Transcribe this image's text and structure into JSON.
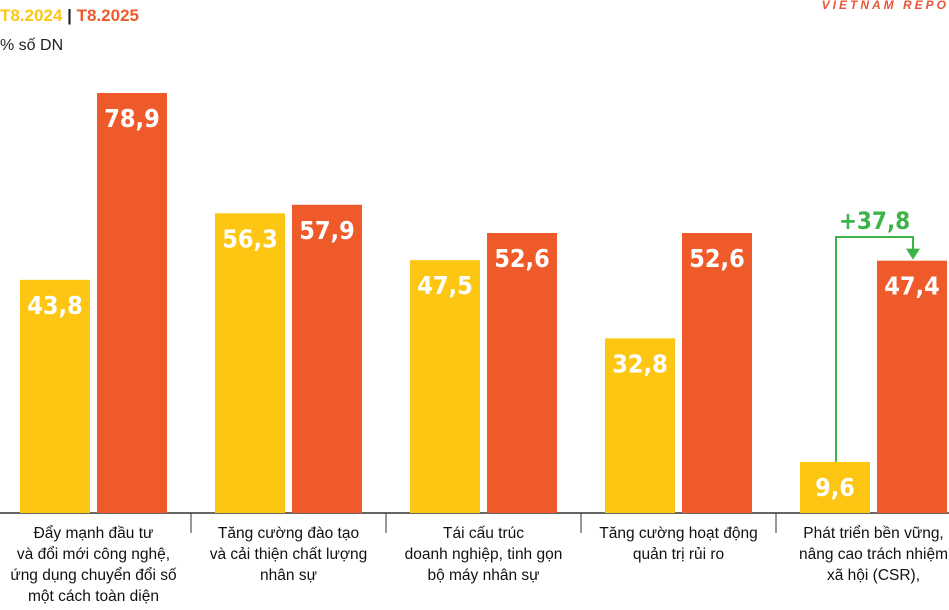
{
  "header": {
    "legend_2024": "T8.2024",
    "legend_separator": "|",
    "legend_2025": "T8.2025",
    "unit": "% số DN",
    "source": "VIETNAM REPO"
  },
  "colors": {
    "series_2024": "#fcc613",
    "series_2025": "#ef5a2a",
    "callout": "#3db44a",
    "axis": "#333333"
  },
  "chart_data": {
    "type": "bar",
    "categories": [
      [
        "Đẩy mạnh đầu tư",
        "và đổi mới công nghệ,",
        "ứng dụng chuyển đổi số",
        "một cách toàn diện"
      ],
      [
        "Tăng cường đào tạo",
        "và cải thiện chất lượng",
        "nhân sự"
      ],
      [
        "Tái cấu trúc",
        "doanh nghiệp, tinh gọn",
        "bộ máy nhân sự"
      ],
      [
        "Tăng cường hoạt động",
        "quản trị rủi ro"
      ],
      [
        "Phát triển bền vững,",
        "nâng cao trách nhiệm",
        "xã hội (CSR),"
      ]
    ],
    "series": [
      {
        "name": "T8.2024",
        "values": [
          43.8,
          56.3,
          47.5,
          32.8,
          9.6
        ],
        "labels": [
          "43,8",
          "56,3",
          "47,5",
          "32,8",
          "9,6"
        ]
      },
      {
        "name": "T8.2025",
        "values": [
          78.9,
          57.9,
          52.6,
          52.6,
          47.4
        ],
        "labels": [
          "78,9",
          "57,9",
          "52,6",
          "52,6",
          "47,4"
        ]
      }
    ],
    "ylim": [
      0,
      78.9
    ],
    "annotation": {
      "category_index": 4,
      "text": "+37,8"
    }
  }
}
